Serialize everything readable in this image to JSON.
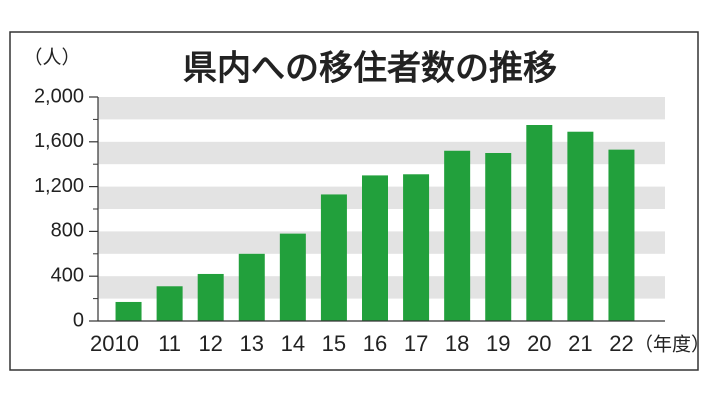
{
  "chart_data": {
    "type": "bar",
    "title": "県内への移住者数の推移",
    "y_unit": "（人）",
    "x_unit": "（年度）",
    "categories": [
      "2010",
      "11",
      "12",
      "13",
      "14",
      "15",
      "16",
      "17",
      "18",
      "19",
      "20",
      "21",
      "22"
    ],
    "values": [
      170,
      310,
      420,
      600,
      780,
      1130,
      1300,
      1310,
      1520,
      1500,
      1750,
      1690,
      1530
    ],
    "color": "#22a03c",
    "ylim": [
      0,
      2000
    ],
    "yticks": [
      0,
      400,
      800,
      {
        "value": 1200,
        "label": "1,200"
      },
      {
        "value": 1600,
        "label": "1,600"
      },
      {
        "value": 2000,
        "label": "2,000"
      }
    ],
    "grid": true
  }
}
